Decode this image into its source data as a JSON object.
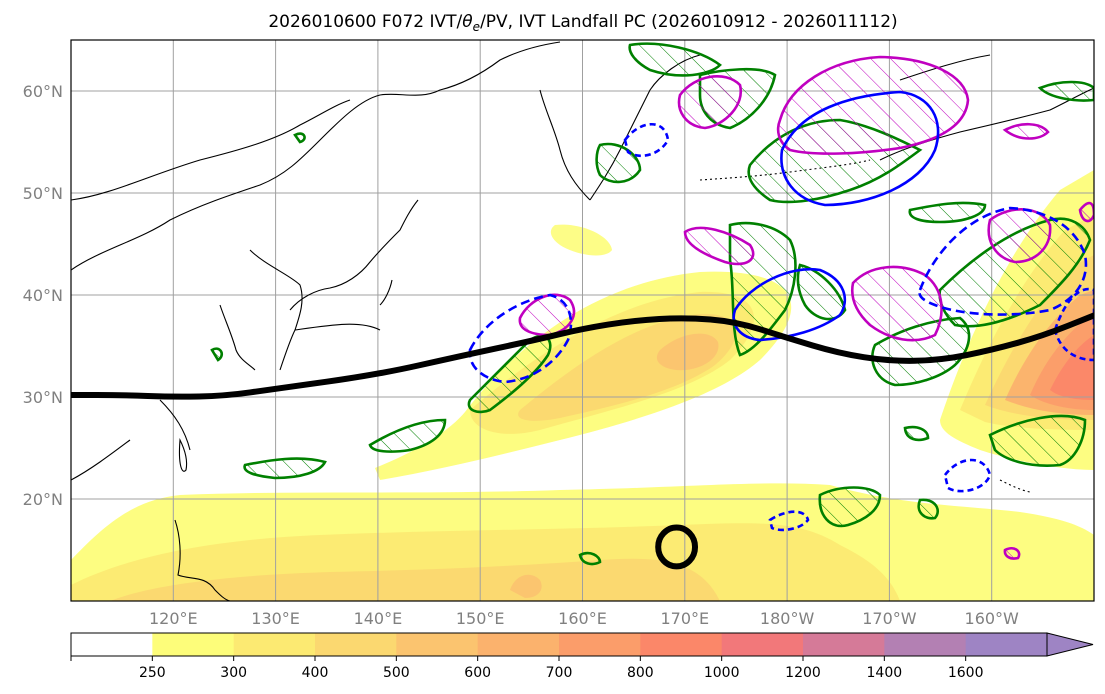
{
  "chart_data": {
    "type": "map",
    "title": "2026010600 F072 IVT/θe/PV, IVT Landfall PC (2026010912 - 2026011112)",
    "title_parts": {
      "prefix": "2026010600 F072 IVT/",
      "theta": "θ",
      "sub": "e",
      "suffix": "/PV, IVT Landfall PC (2026010912 - 2026011112)"
    },
    "lat_range": [
      10,
      65
    ],
    "lon_range_east": [
      110,
      210
    ],
    "grid": true,
    "lat_ticks": [
      {
        "value": 60,
        "label": "60°N"
      },
      {
        "value": 50,
        "label": "50°N"
      },
      {
        "value": 40,
        "label": "40°N"
      },
      {
        "value": 30,
        "label": "30°N"
      },
      {
        "value": 20,
        "label": "20°N"
      }
    ],
    "lon_ticks": [
      {
        "value": 120,
        "label": "120°E"
      },
      {
        "value": 130,
        "label": "130°E"
      },
      {
        "value": 140,
        "label": "140°E"
      },
      {
        "value": 150,
        "label": "150°E"
      },
      {
        "value": 160,
        "label": "160°E"
      },
      {
        "value": 170,
        "label": "170°E"
      },
      {
        "value": 180,
        "label": "180°W"
      },
      {
        "value": 190,
        "label": "170°W"
      },
      {
        "value": 200,
        "label": "160°W"
      }
    ],
    "colorbar": {
      "levels": [
        250,
        300,
        400,
        500,
        600,
        700,
        800,
        1000,
        1200,
        1400,
        1600
      ],
      "labels": [
        "250",
        "300",
        "400",
        "500",
        "600",
        "700",
        "800",
        "1000",
        "1200",
        "1400",
        "1600"
      ],
      "colors": [
        "#ffffff",
        "#fdfd7a",
        "#fcea72",
        "#fbd870",
        "#fbc46f",
        "#fbb26d",
        "#fb9d6a",
        "#fb8769",
        "#f2787a",
        "#d57a98",
        "#b380b3",
        "#9e84c4"
      ],
      "extend": "max"
    },
    "landfall_pc_line": [
      [
        110,
        30.2
      ],
      [
        115,
        30.2
      ],
      [
        120,
        30
      ],
      [
        125,
        30.1
      ],
      [
        130,
        30.8
      ],
      [
        140,
        32.2
      ],
      [
        148,
        34
      ],
      [
        155,
        35.5
      ],
      [
        160,
        36.7
      ],
      [
        165,
        37.5
      ],
      [
        170,
        37.8
      ],
      [
        175,
        37.4
      ],
      [
        180,
        35.8
      ],
      [
        185,
        34.3
      ],
      [
        190,
        33.5
      ],
      [
        195,
        33.6
      ],
      [
        200,
        34.6
      ],
      [
        205,
        36
      ],
      [
        210,
        38
      ]
    ],
    "closed_black_contour": {
      "center": [
        169.2,
        15.3
      ],
      "rx": 1.8,
      "ry": 1.9
    },
    "colors": {
      "landfall_line": "#000000",
      "theta_e_positive": "#008000",
      "theta_e_negative": "#0000ff",
      "pv": "#c000c0",
      "coast": "#000000"
    }
  }
}
